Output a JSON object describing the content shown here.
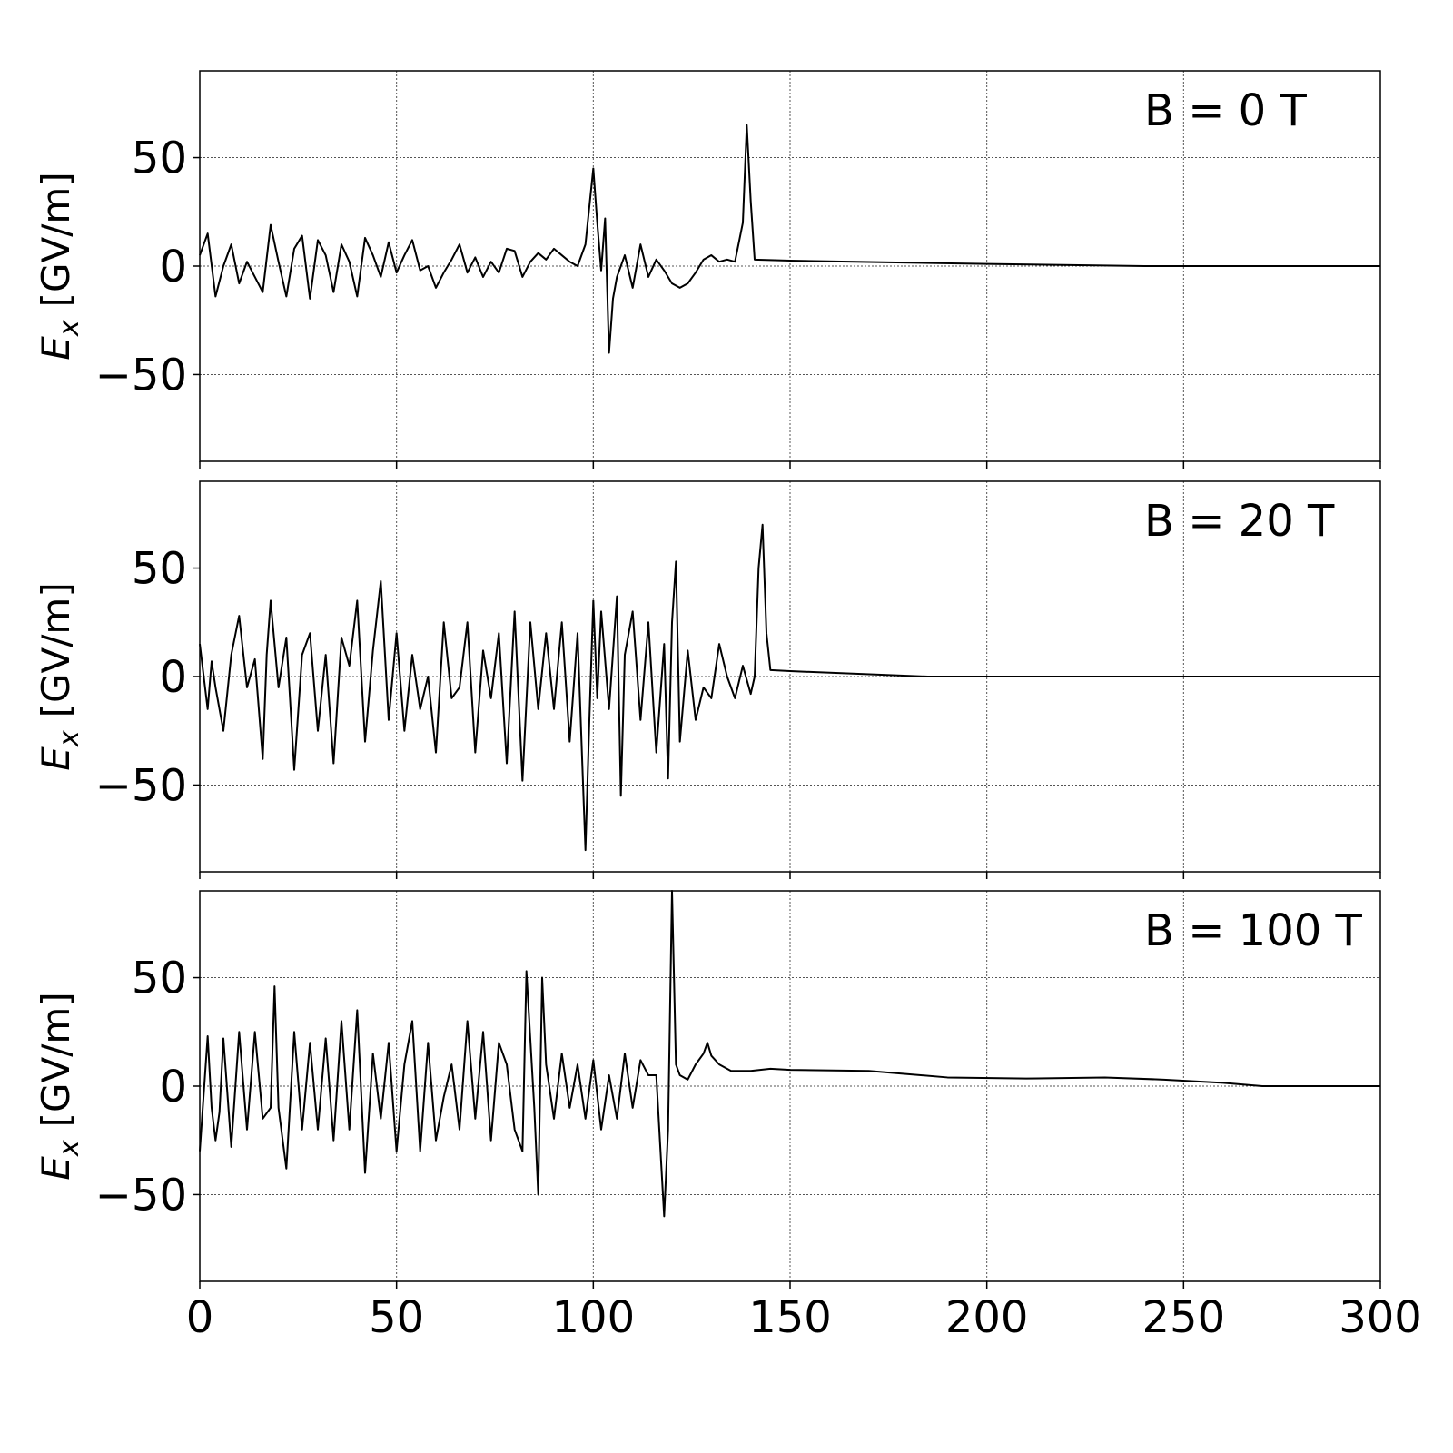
{
  "chart_data": [
    {
      "type": "line",
      "annotation": "B = 0 T",
      "ylabel": {
        "symbol": "E",
        "subscript": "x",
        "unit": "[GV/m]"
      },
      "xlim": [
        0,
        300
      ],
      "xticks": [
        0,
        50,
        100,
        150,
        200,
        250,
        300
      ],
      "ylim": [
        -90,
        90
      ],
      "yticks": [
        {
          "value": -50,
          "label": "−50"
        },
        0,
        50
      ],
      "grid": true,
      "x": [
        0,
        2,
        4,
        6,
        8,
        10,
        12,
        14,
        16,
        18,
        20,
        22,
        24,
        26,
        28,
        30,
        32,
        34,
        36,
        38,
        40,
        42,
        44,
        46,
        48,
        50,
        52,
        54,
        56,
        58,
        60,
        62,
        64,
        66,
        68,
        70,
        72,
        74,
        76,
        78,
        80,
        82,
        84,
        86,
        88,
        90,
        92,
        94,
        96,
        98,
        100,
        101,
        102,
        103,
        104,
        105,
        106,
        108,
        110,
        112,
        114,
        116,
        118,
        120,
        122,
        124,
        126,
        128,
        130,
        132,
        134,
        136,
        138,
        139,
        140,
        141,
        150,
        200,
        240,
        300
      ],
      "series": [
        {
          "color": "#000000",
          "values": [
            5,
            15,
            -14,
            0,
            10,
            -8,
            2,
            -5,
            -12,
            19,
            2,
            -14,
            8,
            14,
            -15,
            12,
            5,
            -12,
            10,
            2,
            -14,
            13,
            5,
            -5,
            11,
            -3,
            5,
            12,
            -2,
            0,
            -10,
            -3,
            3,
            10,
            -3,
            4,
            -5,
            2,
            -3,
            8,
            7,
            -5,
            2,
            6,
            3,
            8,
            5,
            2,
            0,
            10,
            45,
            20,
            -2,
            22,
            -40,
            -15,
            -5,
            5,
            -10,
            10,
            -5,
            3,
            -2,
            -8,
            -10,
            -8,
            -3,
            3,
            5,
            2,
            3,
            2,
            20,
            65,
            30,
            3,
            2.5,
            1,
            0,
            0
          ]
        }
      ]
    },
    {
      "type": "line",
      "annotation": "B = 20 T",
      "ylabel": {
        "symbol": "E",
        "subscript": "x",
        "unit": "[GV/m]"
      },
      "xlim": [
        0,
        300
      ],
      "xticks": [
        0,
        50,
        100,
        150,
        200,
        250,
        300
      ],
      "ylim": [
        -90,
        90
      ],
      "yticks": [
        {
          "value": -50,
          "label": "−50"
        },
        0,
        50
      ],
      "grid": true,
      "x": [
        0,
        2,
        3,
        4,
        6,
        8,
        10,
        12,
        14,
        16,
        17,
        18,
        20,
        22,
        24,
        26,
        28,
        30,
        32,
        34,
        36,
        38,
        40,
        42,
        44,
        46,
        48,
        50,
        52,
        54,
        56,
        58,
        60,
        62,
        64,
        66,
        68,
        70,
        72,
        74,
        76,
        78,
        80,
        82,
        84,
        86,
        88,
        90,
        92,
        94,
        96,
        98,
        99,
        100,
        101,
        102,
        104,
        106,
        107,
        108,
        110,
        112,
        114,
        116,
        118,
        119,
        120,
        121,
        122,
        124,
        126,
        128,
        130,
        132,
        134,
        136,
        138,
        140,
        141,
        142,
        143,
        144,
        145,
        150,
        185,
        300
      ],
      "series": [
        {
          "color": "#000000",
          "values": [
            15,
            -15,
            7,
            -5,
            -25,
            10,
            28,
            -5,
            8,
            -38,
            10,
            35,
            -5,
            18,
            -43,
            10,
            20,
            -25,
            10,
            -40,
            18,
            5,
            35,
            -30,
            12,
            44,
            -20,
            20,
            -25,
            10,
            -15,
            0,
            -35,
            25,
            -10,
            -5,
            25,
            -35,
            12,
            -10,
            20,
            -40,
            30,
            -48,
            25,
            -15,
            20,
            -15,
            25,
            -30,
            20,
            -80,
            -20,
            35,
            -10,
            30,
            -15,
            37,
            -55,
            10,
            30,
            -20,
            25,
            -35,
            15,
            -47,
            25,
            53,
            -30,
            12,
            -20,
            -5,
            -10,
            15,
            0,
            -10,
            5,
            -8,
            0,
            50,
            70,
            20,
            3,
            2.5,
            0,
            0
          ]
        }
      ]
    },
    {
      "type": "line",
      "annotation": "B = 100 T",
      "ylabel": {
        "symbol": "E",
        "subscript": "x",
        "unit": "[GV/m]"
      },
      "xlim": [
        0,
        300
      ],
      "xticks": [
        0,
        50,
        100,
        150,
        200,
        250,
        300
      ],
      "ylim": [
        -90,
        90
      ],
      "yticks": [
        {
          "value": -50,
          "label": "−50"
        },
        0,
        50
      ],
      "grid": true,
      "x": [
        0,
        2,
        3,
        4,
        5,
        6,
        8,
        10,
        12,
        14,
        16,
        18,
        19,
        20,
        22,
        24,
        26,
        28,
        30,
        32,
        34,
        36,
        38,
        40,
        42,
        44,
        46,
        48,
        50,
        52,
        54,
        56,
        58,
        60,
        62,
        64,
        66,
        68,
        70,
        72,
        74,
        76,
        78,
        80,
        82,
        83,
        85,
        86,
        87,
        88,
        90,
        92,
        94,
        96,
        98,
        100,
        102,
        104,
        106,
        108,
        110,
        112,
        114,
        116,
        118,
        119,
        120,
        121,
        122,
        124,
        126,
        128,
        129,
        130,
        132,
        135,
        140,
        145,
        150,
        170,
        190,
        210,
        230,
        245,
        260,
        270,
        300
      ],
      "series": [
        {
          "color": "#000000",
          "values": [
            -30,
            23,
            -10,
            -25,
            -12,
            22,
            -28,
            25,
            -20,
            25,
            -15,
            -10,
            46,
            -10,
            -38,
            25,
            -20,
            20,
            -20,
            22,
            -25,
            30,
            -20,
            35,
            -40,
            15,
            -15,
            20,
            -30,
            10,
            30,
            -30,
            20,
            -25,
            -5,
            10,
            -20,
            30,
            -15,
            25,
            -25,
            20,
            10,
            -20,
            -30,
            53,
            -10,
            -50,
            50,
            10,
            -15,
            15,
            -10,
            10,
            -15,
            12,
            -20,
            5,
            -15,
            15,
            -10,
            12,
            5,
            5,
            -60,
            -20,
            90,
            10,
            5,
            3,
            10,
            15,
            20,
            14,
            10,
            7,
            7,
            8,
            7.5,
            7,
            4,
            3.5,
            4,
            3,
            1.5,
            0,
            0
          ]
        }
      ]
    }
  ]
}
